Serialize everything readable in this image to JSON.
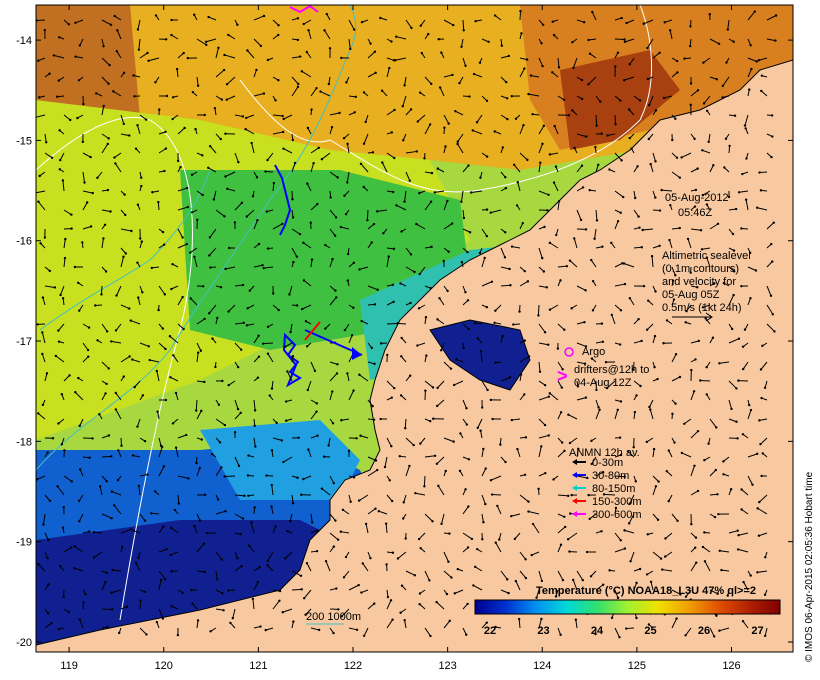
{
  "map": {
    "lon_range": [
      118.65,
      126.65
    ],
    "lat_range": [
      -20.1,
      -13.65
    ],
    "lon_ticks": [
      119,
      120,
      121,
      122,
      123,
      124,
      125,
      126
    ],
    "lat_ticks": [
      -14,
      -15,
      -16,
      -17,
      -18,
      -19,
      -20
    ],
    "lon_tick_labels": [
      "119",
      "120",
      "121",
      "122",
      "123",
      "124",
      "125",
      "126"
    ],
    "lat_tick_labels": [
      "-14",
      "-15",
      "-16",
      "-17",
      "-18",
      "-19",
      "-20"
    ],
    "land_color": "#f8c9a0"
  },
  "annotations": {
    "date": "05-Aug-2012",
    "time": "05:46Z",
    "altimetry_line1": "Altimetric sealevel",
    "altimetry_line2": "(0.1m contours)",
    "altimetry_line3": "and velocity for",
    "altimetry_line4": "05-Aug 05Z",
    "altimetry_line5": "0.5m/s (1kt 24h)",
    "argo_label": "Argo",
    "drifters_line1": "drifters@12h to",
    "drifters_line2": "04-Aug 12Z",
    "depth_scale": "200  1000m"
  },
  "anmn_legend": {
    "title": "ANMN 12h av.",
    "items": [
      {
        "label": "0-30m",
        "color": "#000000"
      },
      {
        "label": "30-80m",
        "color": "#0000ff"
      },
      {
        "label": "80-150m",
        "color": "#00d0d0"
      },
      {
        "label": "150-300m",
        "color": "#ff0000"
      },
      {
        "label": "300-600m",
        "color": "#ff00ff"
      }
    ]
  },
  "colorbar": {
    "title": "Temperature (°C) NOAA18_L3U 47% ql>=2",
    "ticks": [
      "22",
      "23",
      "24",
      "25",
      "26",
      "27"
    ],
    "colors": [
      "#00008f",
      "#0030d0",
      "#0090f0",
      "#00d8d8",
      "#30e070",
      "#a0f030",
      "#f0e000",
      "#f0a000",
      "#e05000",
      "#b02000",
      "#800000"
    ]
  },
  "credit": "© IMOS 06-Apr-2015 02:05:36 Hobart time",
  "colors": {
    "warm": "#c05a10",
    "contour_white": "#ffffff",
    "depth_contour": "#40c0c0"
  }
}
